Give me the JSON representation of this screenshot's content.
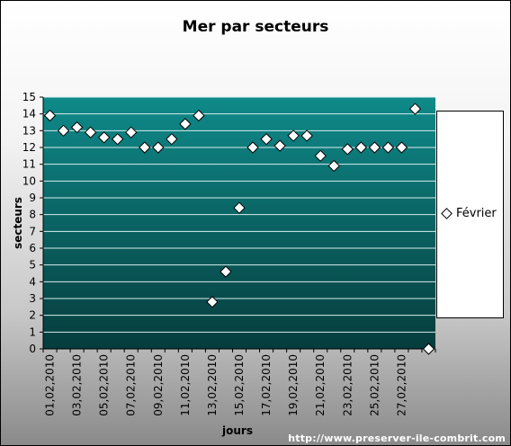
{
  "chart_data": {
    "type": "scatter",
    "title": "Mer par secteurs",
    "xlabel": "jours",
    "ylabel": "secteurs",
    "ylim": [
      0,
      15
    ],
    "yticks": [
      "0",
      "1",
      "2",
      "3",
      "4",
      "5",
      "6",
      "7",
      "8",
      "9",
      "10",
      "11",
      "12",
      "13",
      "14",
      "15"
    ],
    "x": [
      "01,02,2010",
      "02,02,2010",
      "03,02,2010",
      "04,02,2010",
      "05,02,2010",
      "06,02,2010",
      "07,02,2010",
      "08,02,2010",
      "09,02,2010",
      "10,02,2010",
      "11,02,2010",
      "12,02,2010",
      "13,02,2010",
      "14,02,2010",
      "15,02,2010",
      "16,02,2010",
      "17,02,2010",
      "18,02,2010",
      "19,02,2010",
      "20,02,2010",
      "21,02,2010",
      "22,02,2010",
      "23,02,2010",
      "24,02,2010",
      "25,02,2010",
      "26,02,2010",
      "27,02,2010",
      "28,02,2010",
      "01,03,2010"
    ],
    "xtick_labels": [
      "01,02,2010",
      "03,02,2010",
      "05,02,2010",
      "07,02,2010",
      "09,02,2010",
      "11,02,2010",
      "13,02,2010",
      "15,02,2010",
      "17,02,2010",
      "19,02,2010",
      "21,02,2010",
      "23,02,2010",
      "25,02,2010",
      "27,02,2010"
    ],
    "series": [
      {
        "name": "Février",
        "values": [
          13.9,
          13.0,
          13.2,
          12.9,
          12.6,
          12.5,
          12.9,
          12.0,
          12.0,
          12.5,
          13.4,
          13.9,
          2.8,
          4.6,
          8.4,
          12.0,
          12.5,
          12.1,
          12.7,
          12.7,
          11.5,
          10.9,
          11.9,
          12.0,
          12.0,
          12.0,
          12.0,
          14.3,
          0.0
        ]
      }
    ],
    "legend_position": "right",
    "grid": true,
    "colors": {
      "plot_top": "#0f8a8a",
      "plot_bottom": "#063c3c",
      "gridline": "#d8eeee",
      "marker_fill": "#ffffff",
      "marker_stroke": "#000000"
    }
  },
  "legend": {
    "label": "Février"
  },
  "footer": "http://www.preserver-ile-combrit.com"
}
